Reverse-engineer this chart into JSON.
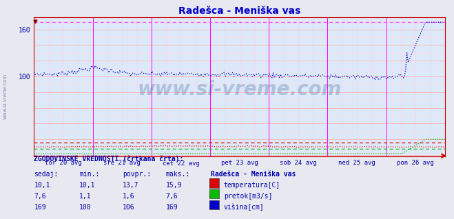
{
  "title": "Radešca - Meniška vas",
  "title_color": "#0000cc",
  "bg_color": "#e8e8f0",
  "plot_bg_color": "#dde8f8",
  "grid_color": "#ffaaaa",
  "grid_minor_color": "#ffdddd",
  "grid_v_color": "#ff88ff",
  "grid_v_minor_color": "#ffccff",
  "x_labels": [
    "tor 20 avg",
    "sre 21 avg",
    "čet 22 avg",
    "pet 23 avg",
    "sob 24 avg",
    "ned 25 avg",
    "pon 26 avg"
  ],
  "x_label_color": "#0000aa",
  "vline_color": "#ff00ff",
  "n_points": 336,
  "temperatura_color": "#dd0000",
  "pretok_color": "#00bb00",
  "visina_color": "#0000cc",
  "ylabel_color": "#0000aa",
  "watermark": "www.si-vreme.com",
  "watermark_color": "#336699",
  "bottom_text_color": "#0000aa",
  "bottom_header": "ZGODOVINSKE VREDNOSTI (črtkana črta):",
  "bottom_col0": "sedaj:",
  "bottom_col1": "min.:",
  "bottom_col2": "povpr.:",
  "bottom_col3": "maks.:",
  "temp_row": [
    "10,1",
    "10,1",
    "13,7",
    "15,9"
  ],
  "pretok_row": [
    "7,6",
    "1,1",
    "1,6",
    "7,6"
  ],
  "visina_row": [
    "169",
    "100",
    "106",
    "169"
  ],
  "legend_title": "Radešca - Meniška vas",
  "legend_temp": "temperatura[C]",
  "legend_pretok": "pretok[m3/s]",
  "legend_visina": "višina[cm]",
  "ylim_min": -2,
  "ylim_max": 175,
  "ytick_values": [
    100,
    160
  ],
  "dashed_hist_visina": 169,
  "dashed_hist_temp": 15.9,
  "dashed_hist_pretok": 7.6,
  "spine_color": "#cc0000",
  "arrow_color": "#cc0000"
}
